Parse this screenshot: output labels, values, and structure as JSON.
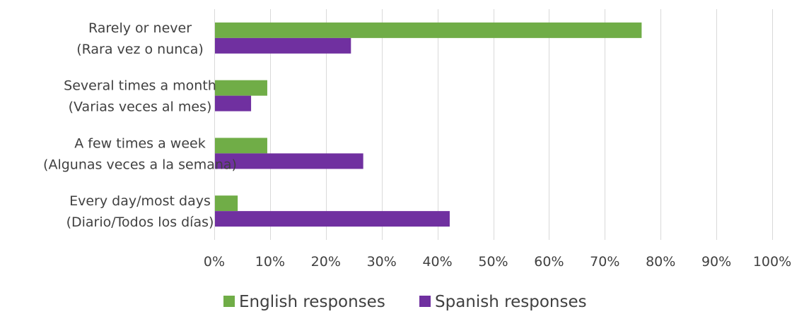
{
  "chart_data": {
    "type": "bar",
    "orientation": "horizontal",
    "categories": [
      [
        "Rarely or never",
        "(Rara vez o nunca)"
      ],
      [
        "Several times a month",
        "(Varias veces al mes)"
      ],
      [
        "A few times a week",
        "(Algunas veces a la semana)"
      ],
      [
        "Every day/most days",
        "(Diario/Todos los días)"
      ]
    ],
    "series": [
      {
        "name": "English responses",
        "color": "#70ad47",
        "values": [
          76.6,
          9.5,
          9.5,
          4.2
        ]
      },
      {
        "name": "Spanish responses",
        "color": "#7030a0",
        "values": [
          24.5,
          6.6,
          26.7,
          42.2
        ]
      }
    ],
    "xlim": [
      0,
      100
    ],
    "xticks": [
      "0%",
      "10%",
      "20%",
      "30%",
      "40%",
      "50%",
      "60%",
      "70%",
      "80%",
      "90%",
      "100%"
    ],
    "grid": true,
    "legend": "bottom",
    "title": "",
    "xlabel": "",
    "ylabel": ""
  }
}
